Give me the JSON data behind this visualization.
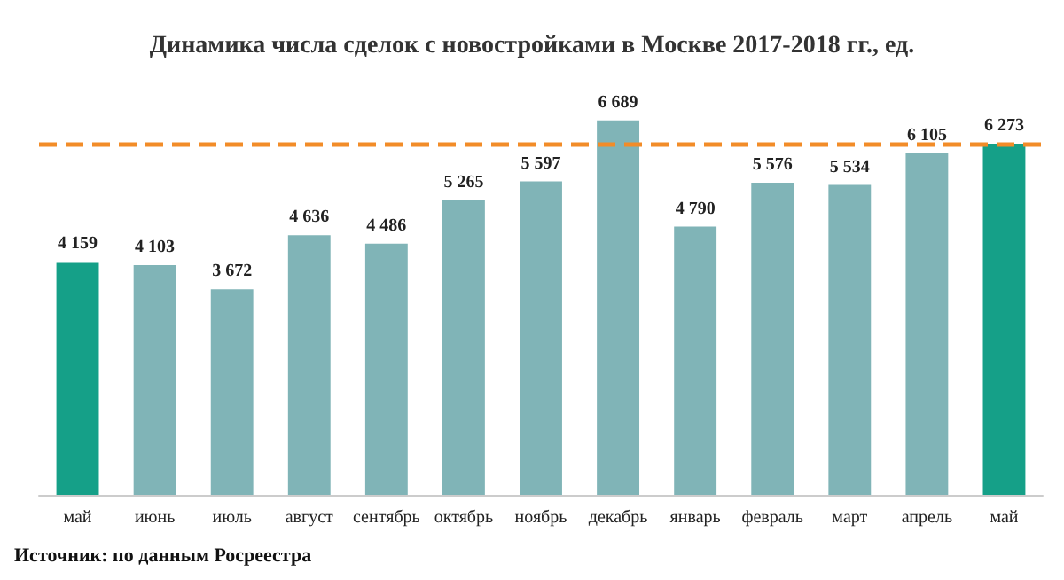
{
  "chart_data": {
    "type": "bar",
    "title": "Динамика числа сделок с новостройками в Москве 2017-2018 гг., ед.",
    "categories": [
      "май",
      "июнь",
      "июль",
      "август",
      "сентябрь",
      "октябрь",
      "ноябрь",
      "декабрь",
      "январь",
      "февраль",
      "март",
      "апрель",
      "май"
    ],
    "values": [
      4159,
      4103,
      3672,
      4636,
      4486,
      5265,
      5597,
      6689,
      4790,
      5576,
      5534,
      6105,
      6273
    ],
    "value_labels": [
      "4 159",
      "4 103",
      "3 672",
      "4 636",
      "4 486",
      "5 265",
      "5 597",
      "6 689",
      "4 790",
      "5 576",
      "5 534",
      "6 105",
      "6 273"
    ],
    "colors": [
      "#15a088",
      "#80b4b7",
      "#80b4b7",
      "#80b4b7",
      "#80b4b7",
      "#80b4b7",
      "#80b4b7",
      "#80b4b7",
      "#80b4b7",
      "#80b4b7",
      "#80b4b7",
      "#80b4b7",
      "#15a088"
    ],
    "ref_lines": [
      {
        "axis": "y",
        "value": 6273,
        "color": "#f28c28",
        "line_style": "dashed"
      }
    ],
    "annotations": [
      "Источник: по данным Росреестра"
    ]
  }
}
